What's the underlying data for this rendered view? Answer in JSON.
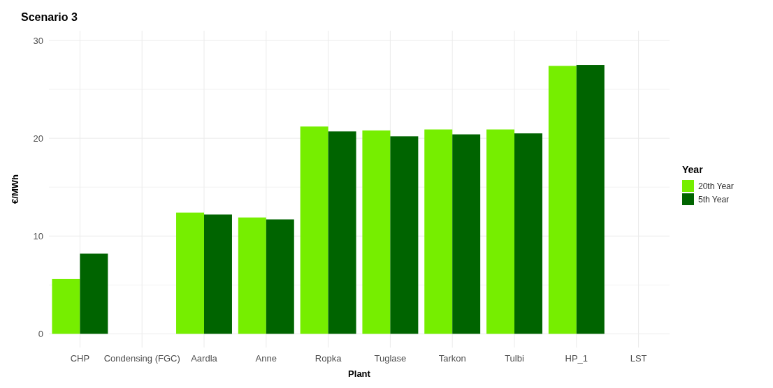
{
  "chart_data": {
    "type": "bar",
    "title": "Scenario 3",
    "xlabel": "Plant",
    "ylabel": "€/MWh",
    "legend_title": "Year",
    "categories": [
      "CHP",
      "Condensing (FGC)",
      "Aardla",
      "Anne",
      "Ropka",
      "Tuglase",
      "Tarkon",
      "Tulbi",
      "HP_1",
      "LST"
    ],
    "series": [
      {
        "name": "20th Year",
        "color": "#76ee00",
        "values": [
          5.6,
          null,
          12.4,
          11.9,
          21.2,
          20.8,
          20.9,
          20.9,
          27.4,
          null
        ]
      },
      {
        "name": "5th Year",
        "color": "#006400",
        "values": [
          8.2,
          null,
          12.2,
          11.7,
          20.7,
          20.2,
          20.4,
          20.5,
          27.5,
          null
        ]
      }
    ],
    "ylim": [
      -1.4,
      31
    ],
    "yticks": [
      0,
      {
        "value": 5,
        "label": null
      },
      10,
      {
        "value": 15,
        "label": null
      },
      20,
      {
        "value": 25,
        "label": null
      },
      30
    ],
    "grid": true,
    "legend": "right"
  }
}
